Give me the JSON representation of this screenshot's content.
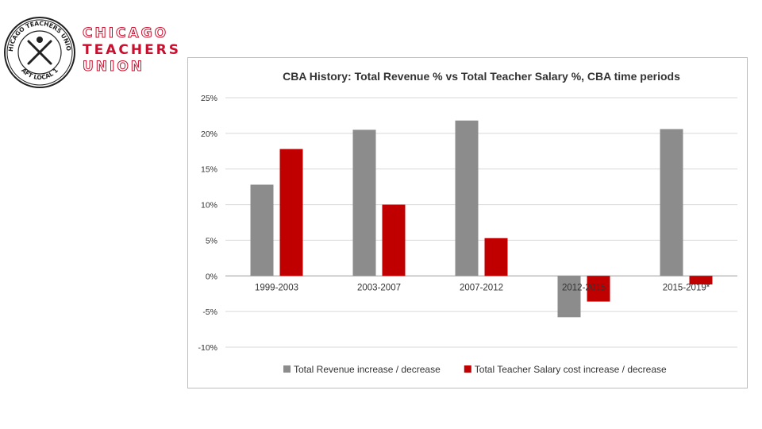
{
  "brand": {
    "line1": "CHICAGO",
    "line2": "TEACHERS",
    "line3": "UNION",
    "seal_text_top": "CHICAGO TEACHERS UNION",
    "seal_text_bottom": "AFT LOCAL 1",
    "accent": "#c8102e"
  },
  "chart_data": {
    "type": "bar",
    "title": "CBA History: Total Revenue % vs Total Teacher Salary %, CBA time periods",
    "categories": [
      "1999-2003",
      "2003-2007",
      "2007-2012",
      "2012-2015",
      "2015-2019*"
    ],
    "series": [
      {
        "name": "Total Revenue increase / decrease",
        "color": "#8c8c8c",
        "values": [
          12.8,
          20.5,
          21.8,
          -5.8,
          20.6
        ]
      },
      {
        "name": "Total Teacher Salary cost increase / decrease",
        "color": "#c00000",
        "values": [
          17.8,
          10.0,
          5.3,
          -3.6,
          -1.2
        ]
      }
    ],
    "ylim": [
      -10,
      25
    ],
    "yticks": [
      "25%",
      "20%",
      "15%",
      "10%",
      "5%",
      "0%",
      "-5%",
      "-10%"
    ],
    "xlabel": "",
    "ylabel": "",
    "grid": true,
    "legend": "bottom"
  }
}
